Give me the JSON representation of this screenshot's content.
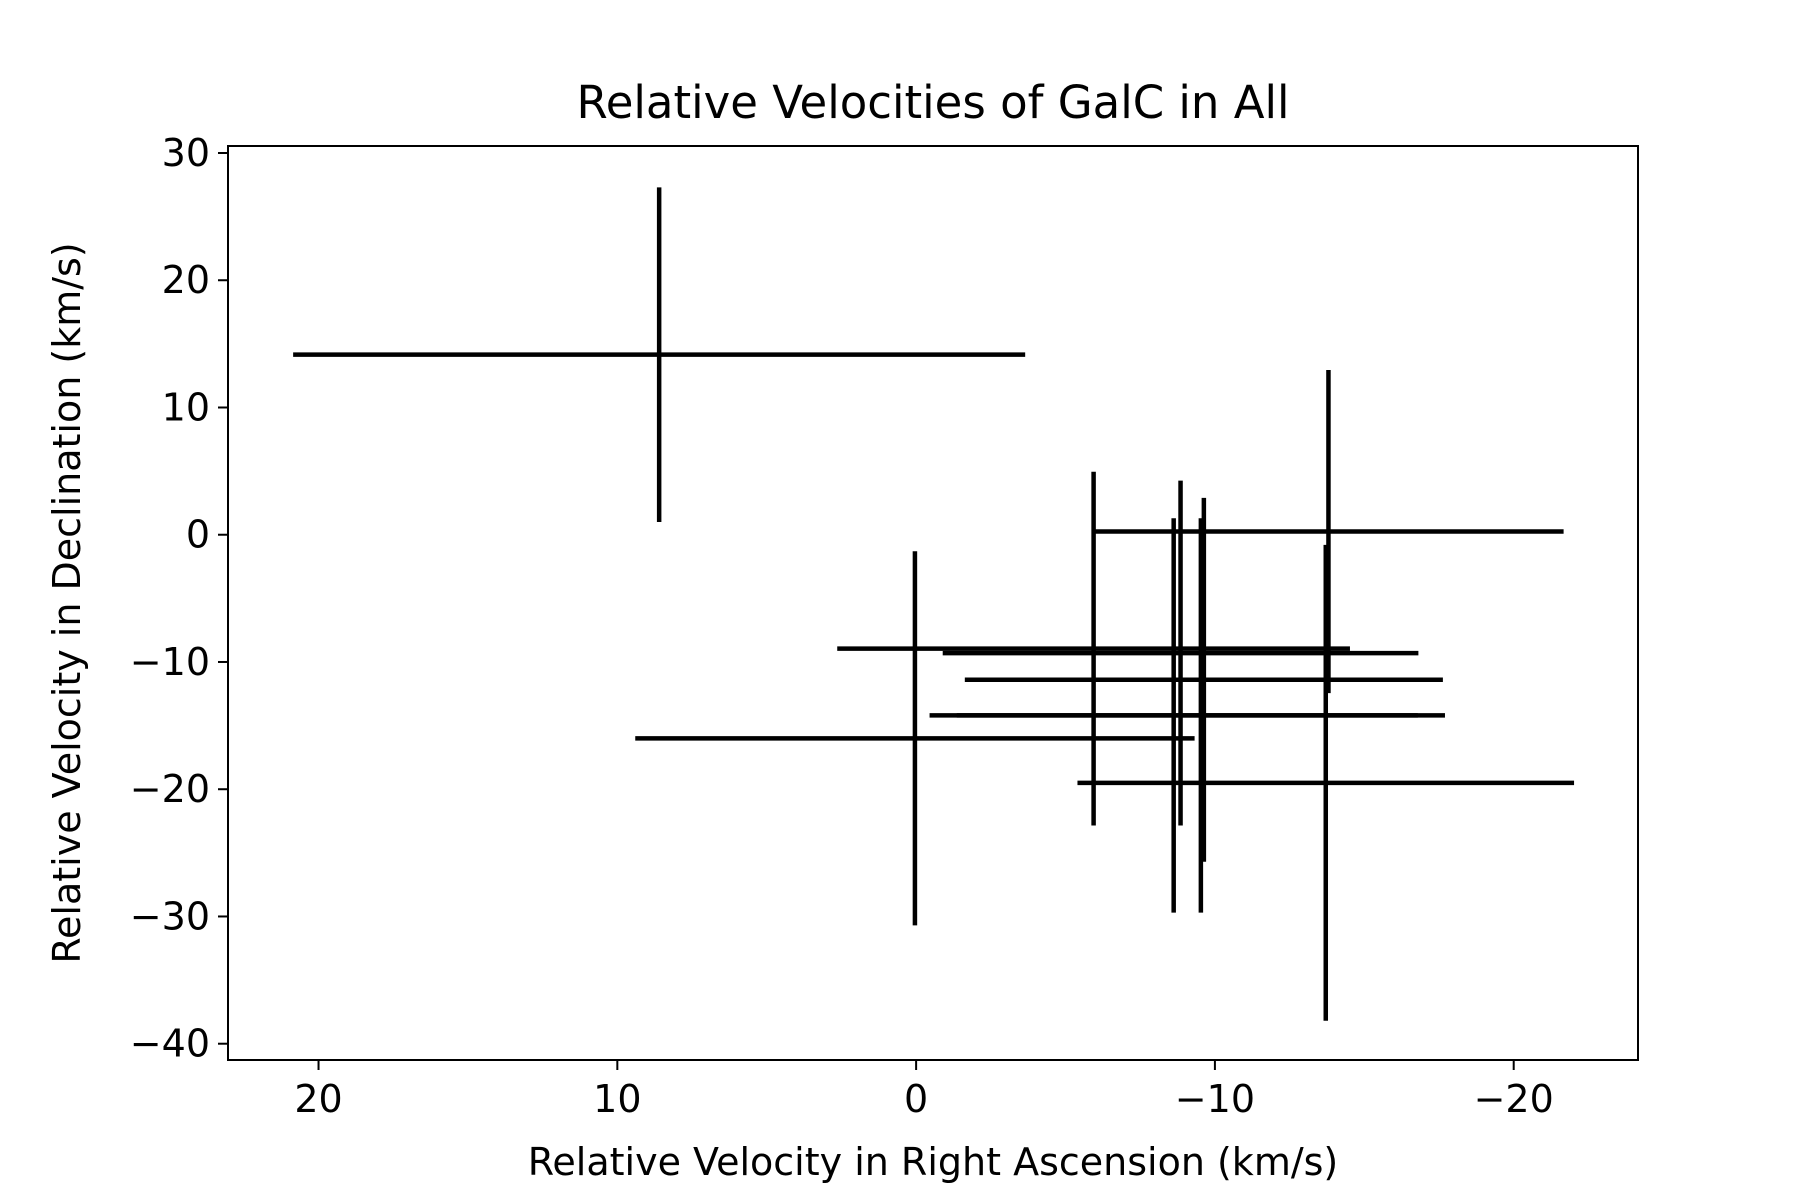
{
  "chart_data": {
    "type": "errorbar",
    "title": "Relative Velocities of GalC in All",
    "xlabel": "Relative Velocity in Right Ascension (km/s)",
    "ylabel": "Relative Velocity in Declination (km/s)",
    "xlim": [
      23.03,
      -24.16
    ],
    "ylim": [
      -41.28,
      30.55
    ],
    "xticks": [
      20,
      10,
      0,
      {
        "value": -10,
        "label": "−10"
      },
      {
        "value": -20,
        "label": "−20"
      }
    ],
    "yticks": [
      {
        "value": -40,
        "label": "−40"
      },
      {
        "value": -30,
        "label": "−30"
      },
      {
        "value": -20,
        "label": "−20"
      },
      {
        "value": -10,
        "label": "−10"
      },
      0,
      10,
      20,
      30
    ],
    "series": [
      {
        "color": "#000000",
        "x": [
          8.6,
          0.04,
          -13.8,
          -5.94,
          -8.85,
          -8.62,
          -9.53,
          -9.63,
          -13.71
        ],
        "values": [
          14.15,
          -16.0,
          0.25,
          -8.95,
          -9.3,
          -14.2,
          -14.2,
          -11.4,
          -19.5
        ],
        "xerr": [
          12.25,
          9.36,
          7.87,
          8.58,
          7.96,
          8.17,
          8.17,
          8.0,
          8.31
        ],
        "yerr": [
          13.15,
          14.7,
          12.7,
          13.9,
          13.55,
          15.5,
          15.5,
          14.3,
          18.7
        ]
      }
    ]
  }
}
